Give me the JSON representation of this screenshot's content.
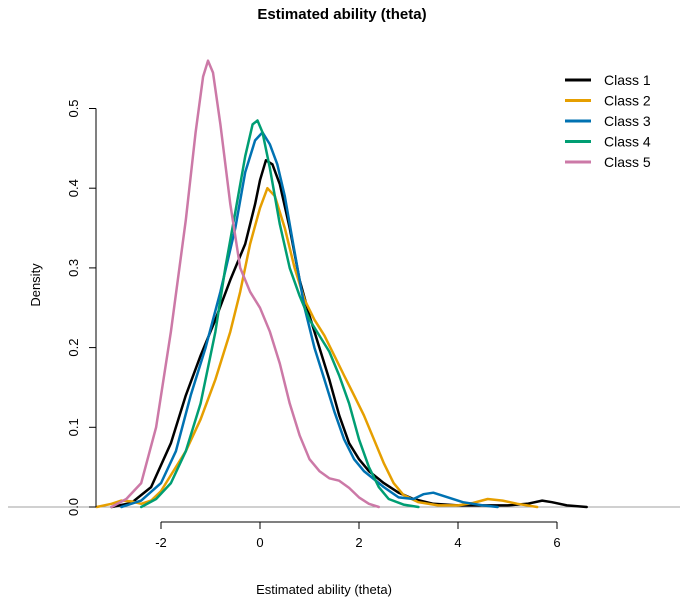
{
  "chart_data": {
    "type": "line",
    "title": "Estimated ability (theta)",
    "xlabel": "Estimated ability (theta)",
    "ylabel": "Density",
    "xlim": [
      -3.3,
      6.8
    ],
    "ylim": [
      0,
      0.56
    ],
    "x_ticks": [
      -2,
      0,
      2,
      4,
      6
    ],
    "y_ticks": [
      0,
      0.1,
      0.2,
      0.3,
      0.4,
      0.5
    ],
    "x_tick_labels": [
      "-2",
      "0",
      "2",
      "4",
      "6"
    ],
    "y_tick_labels": [
      "0.0",
      "0.1",
      "0.2",
      "0.3",
      "0.4",
      "0.5"
    ],
    "grid": false,
    "legend_position": "top-right",
    "series": [
      {
        "name": "Class 1",
        "color": "#000000",
        "points": [
          [
            -3.0,
            0.0
          ],
          [
            -2.6,
            0.005
          ],
          [
            -2.2,
            0.025
          ],
          [
            -1.8,
            0.08
          ],
          [
            -1.5,
            0.14
          ],
          [
            -1.2,
            0.19
          ],
          [
            -0.9,
            0.235
          ],
          [
            -0.6,
            0.285
          ],
          [
            -0.3,
            0.33
          ],
          [
            -0.1,
            0.38
          ],
          [
            0.0,
            0.41
          ],
          [
            0.12,
            0.435
          ],
          [
            0.25,
            0.43
          ],
          [
            0.4,
            0.405
          ],
          [
            0.6,
            0.35
          ],
          [
            0.8,
            0.285
          ],
          [
            1.0,
            0.24
          ],
          [
            1.2,
            0.2
          ],
          [
            1.4,
            0.16
          ],
          [
            1.6,
            0.115
          ],
          [
            1.8,
            0.08
          ],
          [
            2.0,
            0.06
          ],
          [
            2.2,
            0.045
          ],
          [
            2.5,
            0.03
          ],
          [
            2.8,
            0.018
          ],
          [
            3.1,
            0.01
          ],
          [
            3.5,
            0.004
          ],
          [
            4.0,
            0.002
          ],
          [
            4.5,
            0.002
          ],
          [
            5.0,
            0.002
          ],
          [
            5.4,
            0.004
          ],
          [
            5.7,
            0.008
          ],
          [
            5.9,
            0.006
          ],
          [
            6.2,
            0.002
          ],
          [
            6.6,
            0.0
          ]
        ]
      },
      {
        "name": "Class 2",
        "color": "#E69F00",
        "points": [
          [
            -3.3,
            0.0
          ],
          [
            -3.0,
            0.004
          ],
          [
            -2.8,
            0.008
          ],
          [
            -2.6,
            0.007
          ],
          [
            -2.4,
            0.004
          ],
          [
            -2.2,
            0.008
          ],
          [
            -2.0,
            0.02
          ],
          [
            -1.8,
            0.04
          ],
          [
            -1.5,
            0.07
          ],
          [
            -1.2,
            0.11
          ],
          [
            -0.9,
            0.16
          ],
          [
            -0.6,
            0.22
          ],
          [
            -0.4,
            0.27
          ],
          [
            -0.2,
            0.33
          ],
          [
            0.0,
            0.375
          ],
          [
            0.15,
            0.4
          ],
          [
            0.3,
            0.39
          ],
          [
            0.5,
            0.35
          ],
          [
            0.7,
            0.3
          ],
          [
            0.9,
            0.26
          ],
          [
            1.1,
            0.235
          ],
          [
            1.3,
            0.215
          ],
          [
            1.5,
            0.19
          ],
          [
            1.7,
            0.165
          ],
          [
            1.9,
            0.14
          ],
          [
            2.1,
            0.115
          ],
          [
            2.3,
            0.085
          ],
          [
            2.5,
            0.055
          ],
          [
            2.7,
            0.03
          ],
          [
            2.9,
            0.015
          ],
          [
            3.2,
            0.006
          ],
          [
            3.6,
            0.002
          ],
          [
            4.0,
            0.002
          ],
          [
            4.3,
            0.005
          ],
          [
            4.6,
            0.01
          ],
          [
            4.9,
            0.008
          ],
          [
            5.2,
            0.004
          ],
          [
            5.6,
            0.0
          ]
        ]
      },
      {
        "name": "Class 3",
        "color": "#0072B2",
        "points": [
          [
            -2.8,
            0.0
          ],
          [
            -2.4,
            0.008
          ],
          [
            -2.0,
            0.03
          ],
          [
            -1.7,
            0.07
          ],
          [
            -1.4,
            0.14
          ],
          [
            -1.1,
            0.2
          ],
          [
            -0.8,
            0.27
          ],
          [
            -0.5,
            0.35
          ],
          [
            -0.3,
            0.42
          ],
          [
            -0.1,
            0.46
          ],
          [
            0.05,
            0.47
          ],
          [
            0.2,
            0.455
          ],
          [
            0.35,
            0.43
          ],
          [
            0.5,
            0.39
          ],
          [
            0.7,
            0.32
          ],
          [
            0.9,
            0.25
          ],
          [
            1.1,
            0.2
          ],
          [
            1.3,
            0.16
          ],
          [
            1.5,
            0.12
          ],
          [
            1.7,
            0.085
          ],
          [
            1.9,
            0.06
          ],
          [
            2.1,
            0.045
          ],
          [
            2.3,
            0.035
          ],
          [
            2.5,
            0.025
          ],
          [
            2.8,
            0.012
          ],
          [
            3.1,
            0.01
          ],
          [
            3.3,
            0.016
          ],
          [
            3.5,
            0.018
          ],
          [
            3.8,
            0.012
          ],
          [
            4.1,
            0.006
          ],
          [
            4.5,
            0.002
          ],
          [
            4.8,
            0.0
          ]
        ]
      },
      {
        "name": "Class 4",
        "color": "#009E73",
        "points": [
          [
            -2.4,
            0.0
          ],
          [
            -2.1,
            0.01
          ],
          [
            -1.8,
            0.03
          ],
          [
            -1.5,
            0.07
          ],
          [
            -1.2,
            0.13
          ],
          [
            -0.9,
            0.22
          ],
          [
            -0.7,
            0.3
          ],
          [
            -0.5,
            0.37
          ],
          [
            -0.3,
            0.44
          ],
          [
            -0.15,
            0.48
          ],
          [
            -0.05,
            0.485
          ],
          [
            0.05,
            0.47
          ],
          [
            0.2,
            0.425
          ],
          [
            0.4,
            0.355
          ],
          [
            0.6,
            0.3
          ],
          [
            0.8,
            0.265
          ],
          [
            1.0,
            0.235
          ],
          [
            1.2,
            0.215
          ],
          [
            1.4,
            0.195
          ],
          [
            1.6,
            0.165
          ],
          [
            1.8,
            0.13
          ],
          [
            2.0,
            0.085
          ],
          [
            2.2,
            0.05
          ],
          [
            2.4,
            0.025
          ],
          [
            2.6,
            0.01
          ],
          [
            2.9,
            0.003
          ],
          [
            3.2,
            0.0
          ]
        ]
      },
      {
        "name": "Class 5",
        "color": "#CC79A7",
        "points": [
          [
            -3.0,
            0.0
          ],
          [
            -2.7,
            0.01
          ],
          [
            -2.4,
            0.03
          ],
          [
            -2.1,
            0.1
          ],
          [
            -1.8,
            0.22
          ],
          [
            -1.5,
            0.36
          ],
          [
            -1.3,
            0.47
          ],
          [
            -1.15,
            0.54
          ],
          [
            -1.05,
            0.56
          ],
          [
            -0.95,
            0.545
          ],
          [
            -0.8,
            0.48
          ],
          [
            -0.6,
            0.38
          ],
          [
            -0.4,
            0.3
          ],
          [
            -0.2,
            0.27
          ],
          [
            0.0,
            0.25
          ],
          [
            0.2,
            0.22
          ],
          [
            0.4,
            0.18
          ],
          [
            0.6,
            0.13
          ],
          [
            0.8,
            0.09
          ],
          [
            1.0,
            0.06
          ],
          [
            1.2,
            0.045
          ],
          [
            1.4,
            0.036
          ],
          [
            1.6,
            0.033
          ],
          [
            1.8,
            0.024
          ],
          [
            2.0,
            0.012
          ],
          [
            2.2,
            0.004
          ],
          [
            2.4,
            0.0
          ]
        ]
      }
    ]
  }
}
